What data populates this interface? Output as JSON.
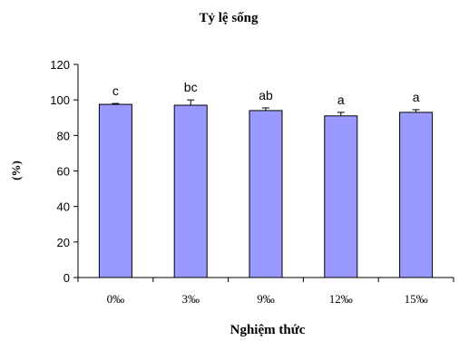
{
  "chart_data": {
    "type": "bar",
    "title": "Tỷ lệ sống",
    "xlabel": "Nghiệm thức",
    "ylabel": "(%)",
    "categories": [
      "0‰",
      "3‰",
      "9‰",
      "12‰",
      "15‰"
    ],
    "values": [
      97.5,
      97,
      94,
      91,
      93
    ],
    "errors": [
      0.5,
      3,
      1.5,
      2,
      1.5
    ],
    "letters": [
      "c",
      "bc",
      "ab",
      "a",
      "a"
    ],
    "ylim": [
      0,
      120
    ],
    "yticks": [
      "0",
      "20",
      "40",
      "60",
      "80",
      "100",
      "120"
    ],
    "grid": false,
    "bar_color": "#9999ff",
    "bar_edge_color": "#000000"
  }
}
